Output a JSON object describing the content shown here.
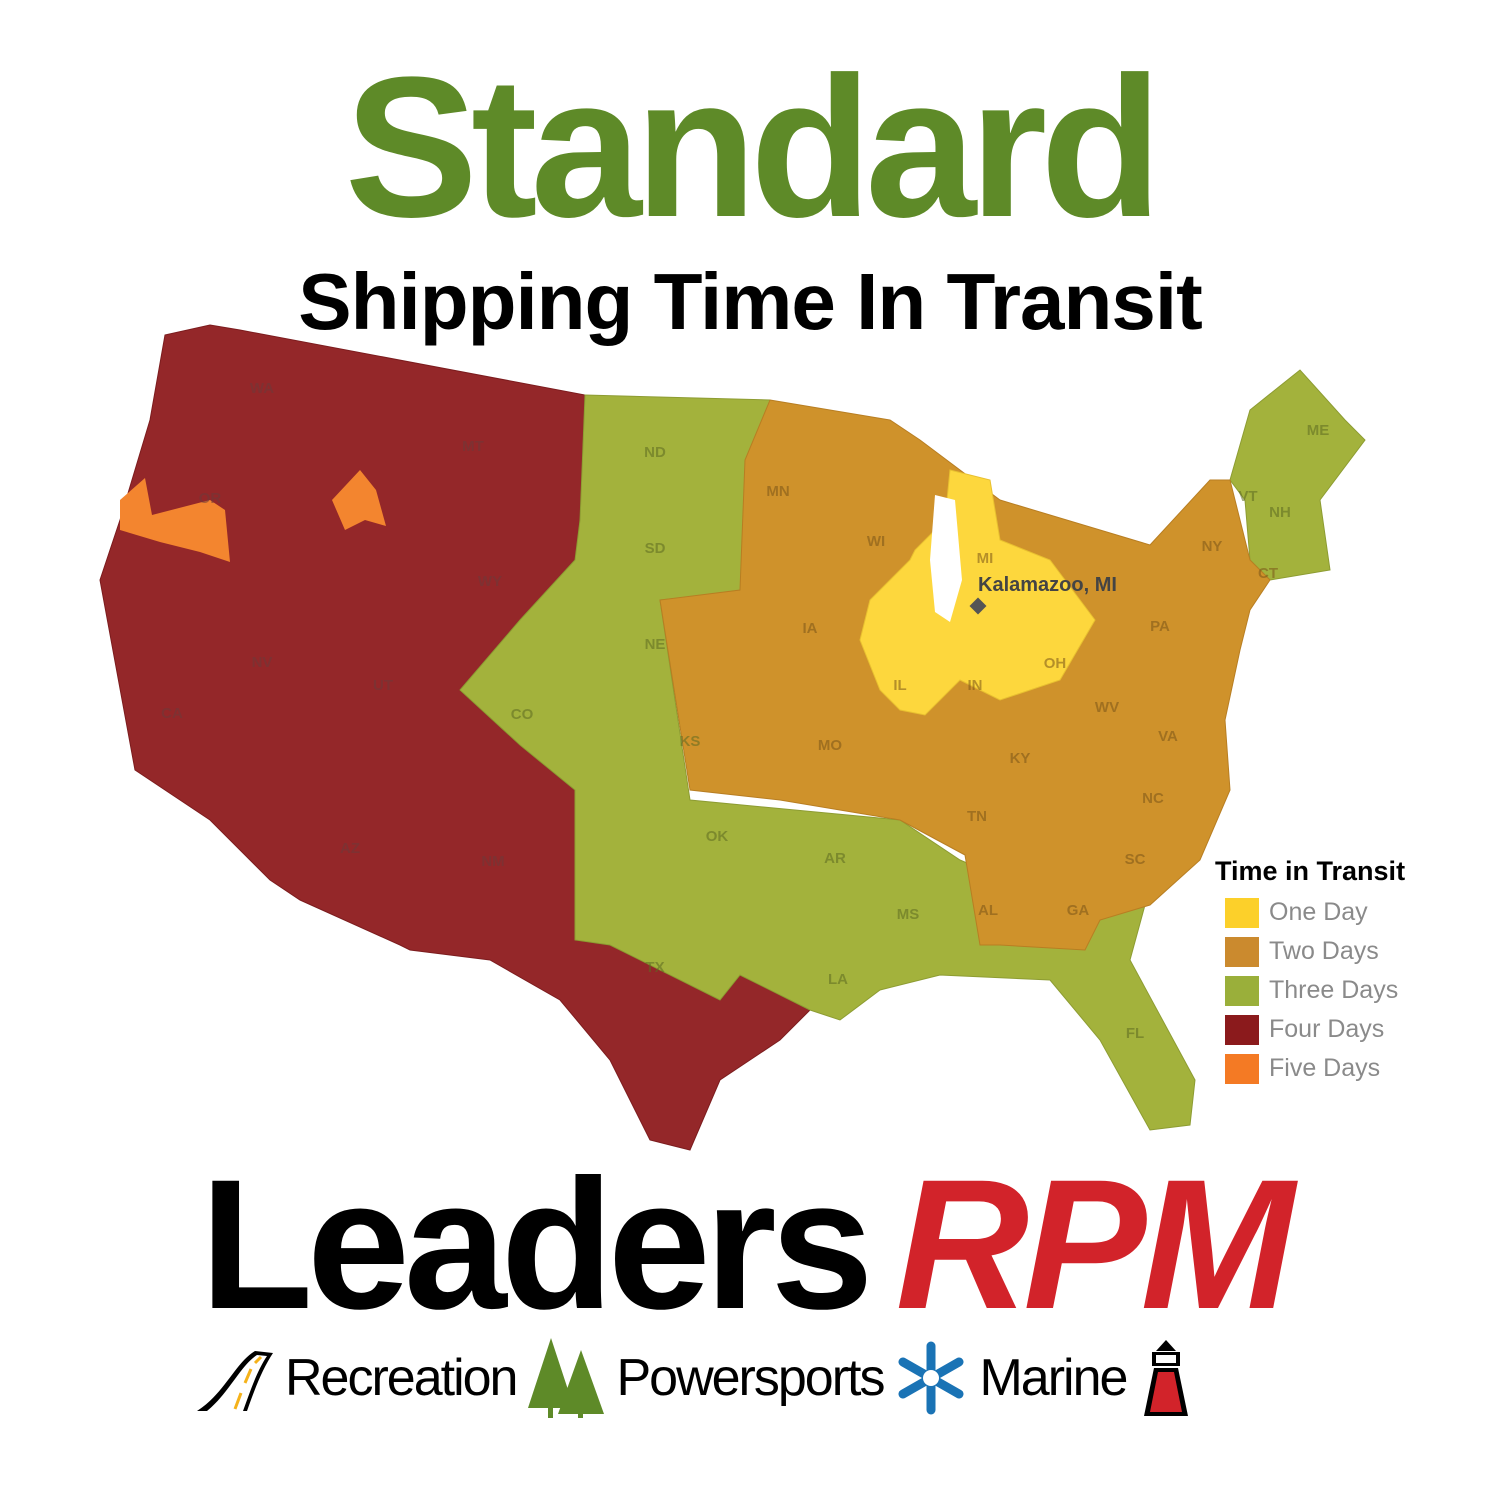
{
  "header": {
    "title": "Standard",
    "subtitle": "Shipping Time In Transit"
  },
  "map": {
    "origin_label": "Kalamazoo, MI",
    "states": {
      "four_days": [
        "WA",
        "OR",
        "MT",
        "WY",
        "NV",
        "UT",
        "CA",
        "AZ",
        "NM"
      ],
      "three_days": [
        "ND",
        "SD",
        "NE",
        "CO",
        "KS",
        "OK",
        "AR",
        "MS",
        "LA",
        "TX",
        "FL",
        "ME",
        "VT",
        "NH"
      ],
      "two_days": [
        "MN",
        "WI",
        "IA",
        "MO",
        "KY",
        "TN",
        "WV",
        "VA",
        "NC",
        "SC",
        "GA",
        "AL",
        "NY",
        "PA",
        "CT"
      ],
      "one_day": [
        "MI",
        "IN",
        "IL",
        "OH"
      ]
    }
  },
  "legend": {
    "title": "Time in Transit",
    "items": [
      {
        "label": "One Day",
        "color": "#fcd02a"
      },
      {
        "label": "Two Days",
        "color": "#cb8a2e"
      },
      {
        "label": "Three Days",
        "color": "#9aaf3a"
      },
      {
        "label": "Four Days",
        "color": "#8b1a1c"
      },
      {
        "label": "Five Days",
        "color": "#f47a24"
      }
    ]
  },
  "brand": {
    "name_left": "Leaders",
    "name_right": "RPM",
    "tagline": [
      "Recreation",
      "Powersports",
      "Marine"
    ],
    "icons": [
      "road-icon",
      "pine-trees-icon",
      "snowflake-icon",
      "lighthouse-icon"
    ]
  }
}
